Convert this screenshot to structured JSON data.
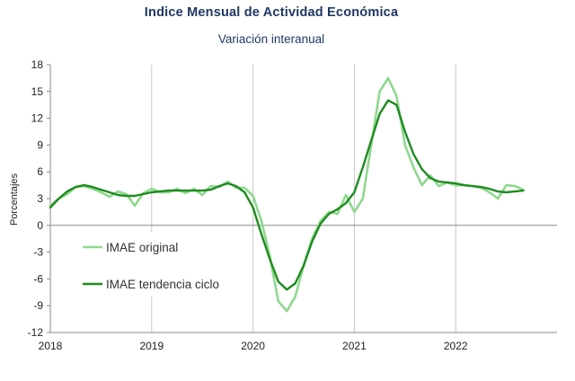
{
  "chart_data": {
    "type": "line",
    "title": "Indice Mensual de  Actividad Económica",
    "subtitle": "Variación interanual",
    "ylabel": "Porcentajes",
    "xlabel": "",
    "ylim": [
      -12,
      18
    ],
    "yticks": [
      18,
      15,
      12,
      9,
      6,
      3,
      0,
      -3,
      -6,
      -9,
      -12
    ],
    "xlim": [
      2018,
      2023
    ],
    "xticks": [
      "2018",
      "2019",
      "2020",
      "2021",
      "2022"
    ],
    "grid": "vertical",
    "legend": "left-middle",
    "series": [
      {
        "name": "IMAE original",
        "color": "#8fd88f",
        "x": [
          2018.0,
          2018.083,
          2018.167,
          2018.25,
          2018.333,
          2018.417,
          2018.5,
          2018.583,
          2018.667,
          2018.75,
          2018.833,
          2018.917,
          2019.0,
          2019.083,
          2019.167,
          2019.25,
          2019.333,
          2019.417,
          2019.5,
          2019.583,
          2019.667,
          2019.75,
          2019.833,
          2019.917,
          2020.0,
          2020.083,
          2020.167,
          2020.25,
          2020.333,
          2020.417,
          2020.5,
          2020.583,
          2020.667,
          2020.75,
          2020.833,
          2020.917,
          2021.0,
          2021.083,
          2021.167,
          2021.25,
          2021.333,
          2021.417,
          2021.5,
          2021.583,
          2021.667,
          2021.75,
          2021.833,
          2021.917,
          2022.0,
          2022.083,
          2022.167,
          2022.25,
          2022.333,
          2022.417,
          2022.5,
          2022.583,
          2022.667
        ],
        "y": [
          2.2,
          3.0,
          3.5,
          4.3,
          4.4,
          4.1,
          3.7,
          3.2,
          3.8,
          3.5,
          2.2,
          3.6,
          4.1,
          3.7,
          3.7,
          4.1,
          3.6,
          4.1,
          3.4,
          4.4,
          4.3,
          4.9,
          4.2,
          4.2,
          3.3,
          0.5,
          -3.5,
          -8.5,
          -9.6,
          -8.0,
          -4.5,
          -1.5,
          0.5,
          1.5,
          1.3,
          3.4,
          1.5,
          3.0,
          9.0,
          15.0,
          16.5,
          14.5,
          9.0,
          6.5,
          4.5,
          5.6,
          4.4,
          4.8,
          4.5,
          4.5,
          4.4,
          4.2,
          3.7,
          3.0,
          4.5,
          4.4,
          4.0
        ]
      },
      {
        "name": "IMAE tendencia ciclo",
        "color": "#1e8c1e",
        "x": [
          2018.0,
          2018.083,
          2018.167,
          2018.25,
          2018.333,
          2018.417,
          2018.5,
          2018.583,
          2018.667,
          2018.75,
          2018.833,
          2018.917,
          2019.0,
          2019.083,
          2019.167,
          2019.25,
          2019.333,
          2019.417,
          2019.5,
          2019.583,
          2019.667,
          2019.75,
          2019.833,
          2019.917,
          2020.0,
          2020.083,
          2020.167,
          2020.25,
          2020.333,
          2020.417,
          2020.5,
          2020.583,
          2020.667,
          2020.75,
          2020.833,
          2020.917,
          2021.0,
          2021.083,
          2021.167,
          2021.25,
          2021.333,
          2021.417,
          2021.5,
          2021.583,
          2021.667,
          2021.75,
          2021.833,
          2021.917,
          2022.0,
          2022.083,
          2022.167,
          2022.25,
          2022.333,
          2022.417,
          2022.5,
          2022.583,
          2022.667
        ],
        "y": [
          2.0,
          3.0,
          3.8,
          4.3,
          4.5,
          4.3,
          4.0,
          3.7,
          3.4,
          3.3,
          3.3,
          3.5,
          3.7,
          3.8,
          3.9,
          3.9,
          3.9,
          3.9,
          3.9,
          4.0,
          4.4,
          4.7,
          4.4,
          3.7,
          2.0,
          -1.0,
          -3.8,
          -6.3,
          -7.2,
          -6.5,
          -4.5,
          -1.8,
          0.2,
          1.3,
          1.8,
          2.5,
          3.7,
          6.5,
          9.5,
          12.5,
          14.0,
          13.5,
          10.5,
          8.0,
          6.3,
          5.3,
          4.9,
          4.8,
          4.7,
          4.5,
          4.4,
          4.3,
          4.1,
          3.8,
          3.7,
          3.8,
          3.9
        ]
      }
    ]
  }
}
